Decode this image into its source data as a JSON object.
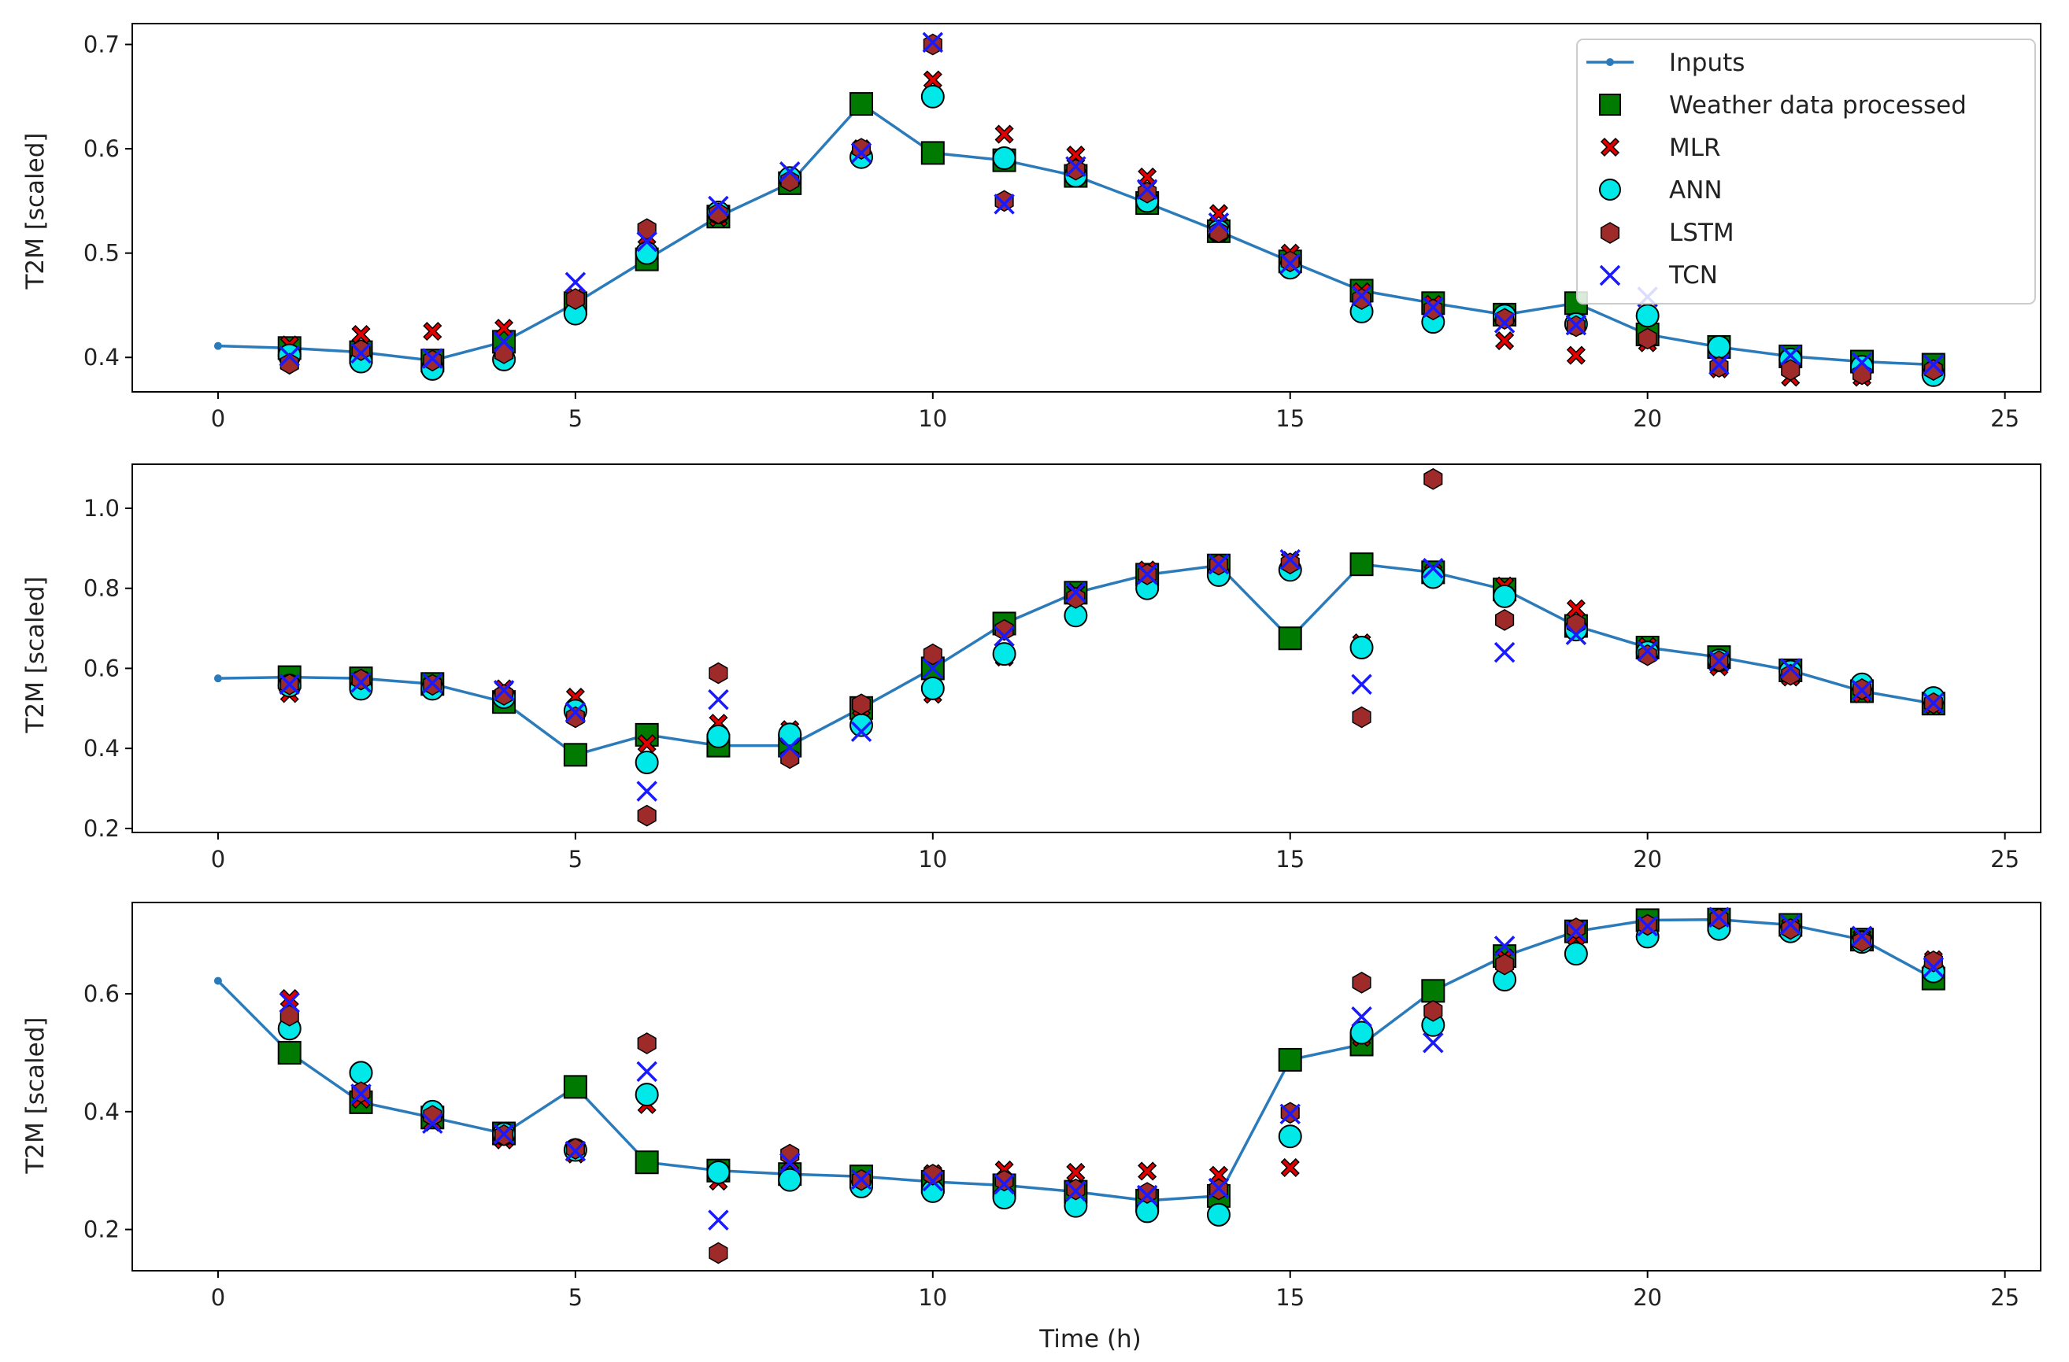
{
  "figure": {
    "xlabel": "Time (h)"
  },
  "colors": {
    "inputs": "#2b7bba",
    "label": "#007a00",
    "mlr": "#e00000",
    "ann": "#00e8e8",
    "lstm": "#9e2a2a",
    "tcn": "#1a1aff",
    "marker_edge": "#000000"
  },
  "legend": {
    "inputs": "Inputs",
    "labels": "Weather data processed",
    "mlr": "MLR",
    "ann": "ANN",
    "lstm": "LSTM",
    "tcn": "TCN"
  },
  "chart_data": [
    {
      "type": "line",
      "ylabel": "T2M [scaled]",
      "xlim": [
        -1.2,
        25.5
      ],
      "ylim": [
        0.367,
        0.72
      ],
      "xticks": [
        0,
        5,
        10,
        15,
        20,
        25
      ],
      "yticks": [
        0.4,
        0.5,
        0.6,
        0.7
      ],
      "ytick_labels": [
        "0.4",
        "0.5",
        "0.6",
        "0.7"
      ],
      "legend_position": "top-right",
      "inputs": {
        "x": [
          0,
          1,
          2,
          3,
          4,
          5,
          6,
          7,
          8,
          9,
          10,
          11,
          12,
          13,
          14,
          15,
          16,
          17,
          18,
          19,
          20,
          21,
          22,
          23,
          24
        ],
        "y": [
          0.411,
          0.409,
          0.405,
          0.397,
          0.415,
          0.452,
          0.494,
          0.535,
          0.567,
          0.643,
          0.596,
          0.589,
          0.574,
          0.548,
          0.521,
          0.492,
          0.464,
          0.452,
          0.441,
          0.452,
          0.422,
          0.41,
          0.401,
          0.396,
          0.393
        ]
      },
      "labels": {
        "x": [
          1,
          2,
          3,
          4,
          5,
          6,
          7,
          8,
          9,
          10,
          11,
          12,
          13,
          14,
          15,
          16,
          17,
          18,
          19,
          20,
          21,
          22,
          23,
          24
        ],
        "y": [
          0.409,
          0.405,
          0.397,
          0.415,
          0.452,
          0.494,
          0.535,
          0.567,
          0.643,
          0.596,
          0.589,
          0.574,
          0.548,
          0.521,
          0.492,
          0.464,
          0.452,
          0.441,
          0.452,
          0.422,
          0.41,
          0.401,
          0.396,
          0.393
        ]
      },
      "mlr": {
        "x": [
          1,
          2,
          3,
          4,
          5,
          6,
          7,
          8,
          9,
          10,
          11,
          12,
          13,
          14,
          15,
          16,
          17,
          18,
          19,
          20,
          21,
          22,
          23,
          24
        ],
        "y": [
          0.412,
          0.422,
          0.425,
          0.428,
          0.458,
          0.516,
          0.534,
          0.571,
          0.6,
          0.666,
          0.614,
          0.594,
          0.573,
          0.538,
          0.5,
          0.463,
          0.451,
          0.416,
          0.402,
          0.414,
          0.389,
          0.381,
          0.381,
          0.387
        ]
      },
      "ann": {
        "x": [
          1,
          2,
          3,
          4,
          5,
          6,
          7,
          8,
          9,
          10,
          11,
          12,
          13,
          14,
          15,
          16,
          17,
          18,
          19,
          20,
          21,
          22,
          23,
          24
        ],
        "y": [
          0.402,
          0.396,
          0.389,
          0.398,
          0.442,
          0.5,
          0.539,
          0.572,
          0.592,
          0.65,
          0.591,
          0.574,
          0.55,
          0.521,
          0.486,
          0.444,
          0.434,
          0.44,
          0.432,
          0.44,
          0.41,
          0.398,
          0.391,
          0.383
        ]
      },
      "lstm": {
        "x": [
          1,
          2,
          3,
          4,
          5,
          6,
          7,
          8,
          9,
          10,
          11,
          12,
          13,
          14,
          15,
          16,
          17,
          18,
          19,
          20,
          21,
          22,
          23,
          24
        ],
        "y": [
          0.394,
          0.407,
          0.397,
          0.404,
          0.456,
          0.523,
          0.538,
          0.569,
          0.6,
          0.7,
          0.55,
          0.58,
          0.558,
          0.52,
          0.492,
          0.456,
          0.446,
          0.437,
          0.43,
          0.418,
          0.391,
          0.388,
          0.384,
          0.388
        ]
      },
      "tcn": {
        "x": [
          1,
          2,
          3,
          4,
          5,
          6,
          7,
          8,
          9,
          10,
          11,
          12,
          13,
          14,
          15,
          16,
          17,
          18,
          19,
          20,
          21,
          22,
          23,
          24
        ],
        "y": [
          0.401,
          0.404,
          0.399,
          0.415,
          0.472,
          0.511,
          0.545,
          0.578,
          0.596,
          0.702,
          0.547,
          0.583,
          0.561,
          0.529,
          0.49,
          0.459,
          0.448,
          0.433,
          0.431,
          0.458,
          0.393,
          0.402,
          0.395,
          0.393
        ]
      }
    },
    {
      "type": "line",
      "ylabel": "T2M [scaled]",
      "xlim": [
        -1.2,
        25.5
      ],
      "ylim": [
        0.19,
        1.11
      ],
      "xticks": [
        0,
        5,
        10,
        15,
        20,
        25
      ],
      "yticks": [
        0.2,
        0.4,
        0.6,
        0.8,
        1.0
      ],
      "ytick_labels": [
        "0.2",
        "0.4",
        "0.6",
        "0.8",
        "1.0"
      ],
      "inputs": {
        "x": [
          0,
          1,
          2,
          3,
          4,
          5,
          6,
          7,
          8,
          9,
          10,
          11,
          12,
          13,
          14,
          15,
          16,
          17,
          18,
          19,
          20,
          21,
          22,
          23,
          24
        ],
        "y": [
          0.575,
          0.578,
          0.575,
          0.561,
          0.516,
          0.384,
          0.434,
          0.407,
          0.407,
          0.501,
          0.6,
          0.712,
          0.789,
          0.834,
          0.857,
          0.675,
          0.86,
          0.84,
          0.797,
          0.706,
          0.652,
          0.628,
          0.595,
          0.543,
          0.512
        ]
      },
      "labels": {
        "x": [
          1,
          2,
          3,
          4,
          5,
          6,
          7,
          8,
          9,
          10,
          11,
          12,
          13,
          14,
          15,
          16,
          17,
          18,
          19,
          20,
          21,
          22,
          23,
          24
        ],
        "y": [
          0.578,
          0.575,
          0.561,
          0.516,
          0.384,
          0.434,
          0.407,
          0.407,
          0.501,
          0.6,
          0.712,
          0.789,
          0.834,
          0.857,
          0.675,
          0.86,
          0.84,
          0.797,
          0.706,
          0.652,
          0.628,
          0.595,
          0.543,
          0.512
        ]
      },
      "mlr": {
        "x": [
          1,
          2,
          3,
          4,
          5,
          6,
          7,
          8,
          9,
          10,
          11,
          12,
          13,
          14,
          15,
          16,
          17,
          18,
          19,
          20,
          21,
          22,
          23,
          24
        ],
        "y": [
          0.537,
          0.57,
          0.559,
          0.549,
          0.528,
          0.412,
          0.463,
          0.447,
          0.502,
          0.535,
          0.628,
          0.79,
          0.846,
          0.85,
          0.87,
          0.664,
          0.839,
          0.806,
          0.749,
          0.655,
          0.604,
          0.578,
          0.536,
          0.509
        ]
      },
      "ann": {
        "x": [
          1,
          2,
          3,
          4,
          5,
          6,
          7,
          8,
          9,
          10,
          11,
          12,
          13,
          14,
          15,
          16,
          17,
          18,
          19,
          20,
          21,
          22,
          23,
          24
        ],
        "y": [
          0.557,
          0.549,
          0.549,
          0.528,
          0.494,
          0.365,
          0.43,
          0.435,
          0.458,
          0.55,
          0.636,
          0.732,
          0.8,
          0.833,
          0.846,
          0.652,
          0.828,
          0.78,
          0.697,
          0.64,
          0.62,
          0.592,
          0.56,
          0.526
        ]
      },
      "lstm": {
        "x": [
          1,
          2,
          3,
          4,
          5,
          6,
          7,
          8,
          9,
          10,
          11,
          12,
          13,
          14,
          15,
          16,
          17,
          18,
          19,
          20,
          21,
          22,
          23,
          24
        ],
        "y": [
          0.56,
          0.572,
          0.559,
          0.534,
          0.478,
          0.232,
          0.588,
          0.376,
          0.51,
          0.635,
          0.696,
          0.776,
          0.835,
          0.859,
          0.862,
          0.478,
          1.073,
          0.721,
          0.711,
          0.633,
          0.618,
          0.584,
          0.548,
          0.513
        ]
      },
      "tcn": {
        "x": [
          1,
          2,
          3,
          4,
          5,
          6,
          7,
          8,
          9,
          10,
          11,
          12,
          13,
          14,
          15,
          16,
          17,
          18,
          19,
          20,
          21,
          22,
          23,
          24
        ],
        "y": [
          0.56,
          0.565,
          0.563,
          0.545,
          0.49,
          0.293,
          0.522,
          0.402,
          0.442,
          0.6,
          0.68,
          0.79,
          0.835,
          0.86,
          0.872,
          0.56,
          0.85,
          0.64,
          0.684,
          0.643,
          0.618,
          0.6,
          0.545,
          0.513
        ]
      }
    },
    {
      "type": "line",
      "ylabel": "T2M [scaled]",
      "xlabel": "Time (h)",
      "xlim": [
        -1.2,
        25.5
      ],
      "ylim": [
        0.13,
        0.755
      ],
      "xticks": [
        0,
        5,
        10,
        15,
        20,
        25
      ],
      "yticks": [
        0.2,
        0.4,
        0.6
      ],
      "ytick_labels": [
        "0.2",
        "0.4",
        "0.6"
      ],
      "inputs": {
        "x": [
          0,
          1,
          2,
          3,
          4,
          5,
          6,
          7,
          8,
          9,
          10,
          11,
          12,
          13,
          14,
          15,
          16,
          17,
          18,
          19,
          20,
          21,
          22,
          23,
          24
        ],
        "y": [
          0.622,
          0.5,
          0.416,
          0.39,
          0.363,
          0.442,
          0.314,
          0.3,
          0.294,
          0.29,
          0.281,
          0.275,
          0.264,
          0.249,
          0.257,
          0.488,
          0.514,
          0.605,
          0.664,
          0.706,
          0.725,
          0.726,
          0.717,
          0.692,
          0.626
        ]
      },
      "labels": {
        "x": [
          1,
          2,
          3,
          4,
          5,
          6,
          7,
          8,
          9,
          10,
          11,
          12,
          13,
          14,
          15,
          16,
          17,
          18,
          19,
          20,
          21,
          22,
          23,
          24
        ],
        "y": [
          0.5,
          0.416,
          0.39,
          0.363,
          0.442,
          0.314,
          0.3,
          0.294,
          0.29,
          0.281,
          0.275,
          0.264,
          0.249,
          0.257,
          0.488,
          0.514,
          0.605,
          0.664,
          0.706,
          0.725,
          0.726,
          0.717,
          0.692,
          0.626
        ]
      },
      "mlr": {
        "x": [
          1,
          2,
          3,
          4,
          5,
          6,
          7,
          8,
          9,
          10,
          11,
          12,
          13,
          14,
          15,
          16,
          17,
          18,
          19,
          20,
          21,
          22,
          23,
          24
        ],
        "y": [
          0.592,
          0.421,
          0.382,
          0.352,
          0.328,
          0.412,
          0.282,
          0.314,
          0.276,
          0.295,
          0.301,
          0.297,
          0.299,
          0.292,
          0.305,
          0.526,
          0.561,
          0.661,
          0.697,
          0.71,
          0.726,
          0.714,
          0.695,
          0.658
        ]
      },
      "ann": {
        "x": [
          1,
          2,
          3,
          4,
          5,
          6,
          7,
          8,
          9,
          10,
          11,
          12,
          13,
          14,
          15,
          16,
          17,
          18,
          19,
          20,
          21,
          22,
          23,
          24
        ],
        "y": [
          0.541,
          0.466,
          0.4,
          0.362,
          0.335,
          0.429,
          0.297,
          0.284,
          0.273,
          0.265,
          0.254,
          0.24,
          0.231,
          0.225,
          0.358,
          0.534,
          0.547,
          0.624,
          0.668,
          0.697,
          0.71,
          0.706,
          0.688,
          0.638
        ]
      },
      "lstm": {
        "x": [
          1,
          2,
          3,
          4,
          5,
          6,
          7,
          8,
          9,
          10,
          11,
          12,
          13,
          14,
          15,
          16,
          17,
          18,
          19,
          20,
          21,
          22,
          23,
          24
        ],
        "y": [
          0.563,
          0.433,
          0.393,
          0.36,
          0.337,
          0.516,
          0.16,
          0.327,
          0.284,
          0.293,
          0.283,
          0.268,
          0.262,
          0.268,
          0.398,
          0.619,
          0.571,
          0.65,
          0.711,
          0.717,
          0.727,
          0.71,
          0.689,
          0.655
        ]
      },
      "tcn": {
        "x": [
          1,
          2,
          3,
          4,
          5,
          6,
          7,
          8,
          9,
          10,
          11,
          12,
          13,
          14,
          15,
          16,
          17,
          18,
          19,
          20,
          21,
          22,
          23,
          24
        ],
        "y": [
          0.585,
          0.43,
          0.38,
          0.362,
          0.333,
          0.468,
          0.216,
          0.313,
          0.285,
          0.282,
          0.277,
          0.265,
          0.258,
          0.27,
          0.396,
          0.561,
          0.517,
          0.681,
          0.706,
          0.715,
          0.73,
          0.718,
          0.698,
          0.645
        ]
      }
    }
  ]
}
